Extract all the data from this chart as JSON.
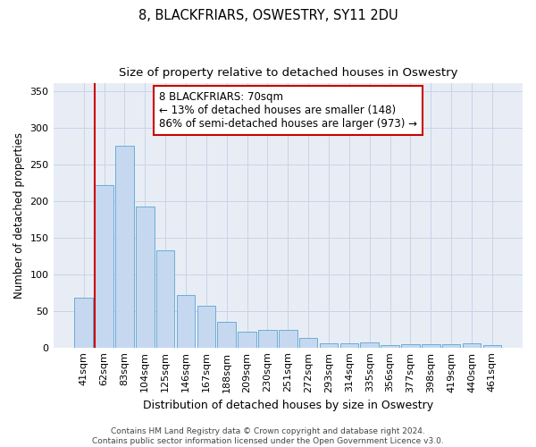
{
  "title": "8, BLACKFRIARS, OSWESTRY, SY11 2DU",
  "subtitle": "Size of property relative to detached houses in Oswestry",
  "xlabel": "Distribution of detached houses by size in Oswestry",
  "ylabel": "Number of detached properties",
  "categories": [
    "41sqm",
    "62sqm",
    "83sqm",
    "104sqm",
    "125sqm",
    "146sqm",
    "167sqm",
    "188sqm",
    "209sqm",
    "230sqm",
    "251sqm",
    "272sqm",
    "293sqm",
    "314sqm",
    "335sqm",
    "356sqm",
    "377sqm",
    "398sqm",
    "419sqm",
    "440sqm",
    "461sqm"
  ],
  "values": [
    68,
    222,
    275,
    192,
    132,
    72,
    57,
    35,
    21,
    24,
    24,
    13,
    6,
    6,
    7,
    3,
    4,
    5,
    5,
    6,
    3
  ],
  "bar_color": "#c5d8f0",
  "bar_edge_color": "#6aaed6",
  "grid_color": "#c8d4e8",
  "background_color": "#e8edf5",
  "annotation_text": "8 BLACKFRIARS: 70sqm\n← 13% of detached houses are smaller (148)\n86% of semi-detached houses are larger (973) →",
  "annotation_box_color": "#ffffff",
  "annotation_border_color": "#cc0000",
  "red_line_bar_index": 1,
  "ylim": [
    0,
    360
  ],
  "yticks": [
    0,
    50,
    100,
    150,
    200,
    250,
    300,
    350
  ],
  "footer_text": "Contains HM Land Registry data © Crown copyright and database right 2024.\nContains public sector information licensed under the Open Government Licence v3.0.",
  "title_fontsize": 10.5,
  "subtitle_fontsize": 9.5,
  "ylabel_fontsize": 8.5,
  "xlabel_fontsize": 9,
  "tick_fontsize": 8,
  "annot_fontsize": 8.5
}
